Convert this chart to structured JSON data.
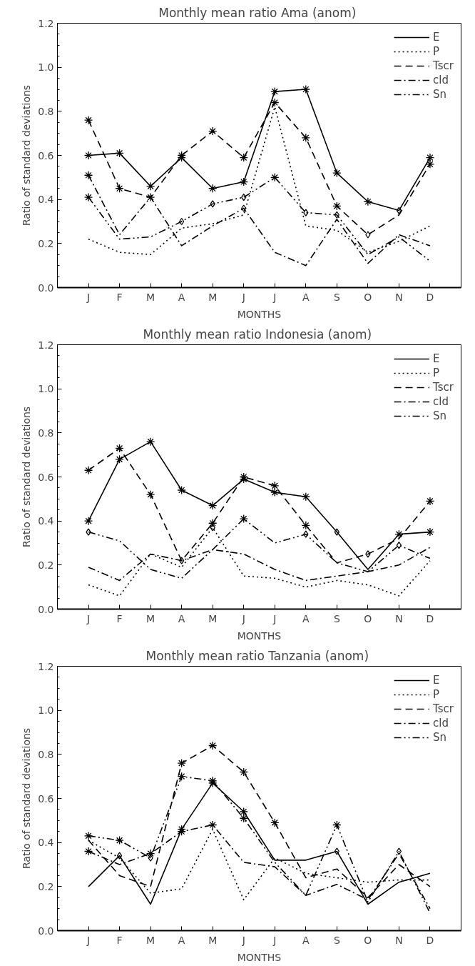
{
  "chart_data": [
    {
      "type": "line",
      "title": "Monthly mean ratio  Ama (anom)",
      "xlabel": "MONTHS",
      "ylabel": "Ratio of standard deviations",
      "categories": [
        "J",
        "F",
        "M",
        "A",
        "M",
        "J",
        "J",
        "A",
        "S",
        "O",
        "N",
        "D"
      ],
      "ylim": [
        0,
        1.2
      ],
      "yticks": [
        {
          "value": 0,
          "label": "0.0"
        },
        {
          "value": 0.2,
          "label": "0.2"
        },
        {
          "value": 0.4,
          "label": "0.4"
        },
        {
          "value": 0.6,
          "label": "0.6"
        },
        {
          "value": 0.8,
          "label": "0.8"
        },
        {
          "value": 1.0,
          "label": "1.0"
        },
        {
          "value": 1.2,
          "label": "1.2"
        }
      ],
      "grid": false,
      "legend": "top right",
      "series": [
        {
          "name": "E",
          "color": "#000000",
          "line_style": "solid",
          "values": [
            0.6,
            0.61,
            0.46,
            0.59,
            0.45,
            0.48,
            0.89,
            0.9,
            0.52,
            0.39,
            0.35,
            0.59
          ]
        },
        {
          "name": "P",
          "color": "#000000",
          "line_style": "dotted",
          "values": [
            0.22,
            0.16,
            0.15,
            0.27,
            0.29,
            0.33,
            0.82,
            0.28,
            0.26,
            0.16,
            0.21,
            0.28
          ]
        },
        {
          "name": "Tscr",
          "color": "#000000",
          "line_style": "dashed",
          "values": [
            0.76,
            0.45,
            0.41,
            0.6,
            0.71,
            0.59,
            0.84,
            0.68,
            0.37,
            0.24,
            0.33,
            0.56
          ]
        },
        {
          "name": "cld",
          "color": "#000000",
          "line_style": "dashdot",
          "values": [
            0.51,
            0.24,
            0.41,
            0.19,
            0.28,
            0.36,
            0.16,
            0.1,
            0.31,
            0.11,
            0.24,
            0.19
          ]
        },
        {
          "name": "Sn",
          "color": "#000000",
          "line_style": "dashdotdot",
          "values": [
            0.41,
            0.22,
            0.23,
            0.3,
            0.38,
            0.41,
            0.5,
            0.34,
            0.33,
            0.15,
            0.23,
            0.12
          ]
        },
        {
          "type": "scatter",
          "marker": "cross",
          "color": "#000000",
          "values": [
            0.6,
            0.61,
            0.46,
            0.59,
            0.45,
            0.48,
            0.89,
            0.9,
            0.52,
            0.39,
            null,
            0.59
          ]
        },
        {
          "type": "scatter",
          "marker": "diamond",
          "color": "#000000",
          "values": [
            null,
            null,
            null,
            null,
            null,
            null,
            null,
            null,
            null,
            null,
            0.35,
            null
          ]
        },
        {
          "type": "scatter",
          "marker": "cross",
          "color": "#000000",
          "values": [
            0.76,
            0.45,
            0.41,
            0.6,
            0.71,
            0.59,
            0.84,
            0.68,
            0.37,
            null,
            null,
            0.56
          ]
        },
        {
          "type": "scatter",
          "marker": "diamond",
          "color": "#000000",
          "values": [
            null,
            null,
            null,
            null,
            null,
            null,
            null,
            null,
            null,
            0.24,
            null,
            null
          ]
        },
        {
          "type": "scatter",
          "marker": "cross",
          "color": "#000000",
          "values": [
            0.51,
            null,
            null,
            null,
            null,
            null,
            null,
            null,
            null,
            null,
            null,
            null
          ]
        },
        {
          "type": "scatter",
          "marker": "diamond",
          "color": "#000000",
          "values": [
            null,
            null,
            null,
            null,
            null,
            0.36,
            null,
            null,
            null,
            null,
            null,
            null
          ]
        },
        {
          "type": "scatter",
          "marker": "cross",
          "color": "#000000",
          "values": [
            0.41,
            null,
            null,
            null,
            null,
            null,
            0.5,
            null,
            null,
            null,
            null,
            null
          ]
        },
        {
          "type": "scatter",
          "marker": "diamond",
          "color": "#000000",
          "values": [
            null,
            null,
            null,
            0.3,
            0.38,
            0.41,
            null,
            0.34,
            0.33,
            null,
            null,
            null
          ]
        }
      ]
    },
    {
      "type": "line",
      "title": "Monthly mean ratio  Indonesia (anom)",
      "xlabel": "MONTHS",
      "ylabel": "Ratio of standard deviations",
      "categories": [
        "J",
        "F",
        "M",
        "A",
        "M",
        "J",
        "J",
        "A",
        "S",
        "O",
        "N",
        "D"
      ],
      "ylim": [
        0,
        1.2
      ],
      "yticks": [
        {
          "value": 0,
          "label": "0.0"
        },
        {
          "value": 0.2,
          "label": "0.2"
        },
        {
          "value": 0.4,
          "label": "0.4"
        },
        {
          "value": 0.6,
          "label": "0.6"
        },
        {
          "value": 0.8,
          "label": "0.8"
        },
        {
          "value": 1.0,
          "label": "1.0"
        },
        {
          "value": 1.2,
          "label": "1.2"
        }
      ],
      "grid": false,
      "legend": "top right",
      "series": [
        {
          "name": "E",
          "color": "#000000",
          "line_style": "solid",
          "values": [
            0.4,
            0.68,
            0.76,
            0.54,
            0.47,
            0.59,
            0.53,
            0.51,
            0.35,
            0.18,
            0.34,
            0.35
          ]
        },
        {
          "name": "P",
          "color": "#000000",
          "line_style": "dotted",
          "values": [
            0.11,
            0.06,
            0.25,
            0.19,
            0.37,
            0.15,
            0.14,
            0.1,
            0.13,
            0.11,
            0.06,
            0.22
          ]
        },
        {
          "name": "Tscr",
          "color": "#000000",
          "line_style": "dashed",
          "values": [
            0.63,
            0.73,
            0.52,
            0.22,
            0.39,
            0.6,
            0.56,
            0.38,
            0.21,
            0.25,
            0.32,
            0.49
          ]
        },
        {
          "name": "cld",
          "color": "#000000",
          "line_style": "dashdot",
          "values": [
            0.19,
            0.13,
            0.25,
            0.22,
            0.27,
            0.25,
            0.18,
            0.13,
            0.15,
            0.17,
            0.2,
            0.28
          ]
        },
        {
          "name": "Sn",
          "color": "#000000",
          "line_style": "dashdotdot",
          "values": [
            0.35,
            0.31,
            0.18,
            0.14,
            0.27,
            0.41,
            0.3,
            0.34,
            0.21,
            0.17,
            0.29,
            0.23
          ]
        },
        {
          "type": "scatter",
          "marker": "cross",
          "color": "#000000",
          "values": [
            0.4,
            0.68,
            0.76,
            0.54,
            0.47,
            0.59,
            0.53,
            0.51,
            null,
            null,
            0.34,
            0.35
          ]
        },
        {
          "type": "scatter",
          "marker": "diamond",
          "color": "#000000",
          "values": [
            null,
            null,
            null,
            null,
            null,
            null,
            null,
            null,
            0.35,
            null,
            null,
            null
          ]
        },
        {
          "type": "scatter",
          "marker": "diamond",
          "color": "#000000",
          "values": [
            null,
            null,
            null,
            null,
            0.37,
            null,
            null,
            null,
            null,
            null,
            null,
            null
          ]
        },
        {
          "type": "scatter",
          "marker": "cross",
          "color": "#000000",
          "values": [
            0.63,
            0.73,
            0.52,
            null,
            0.39,
            0.6,
            0.56,
            0.38,
            null,
            null,
            null,
            0.49
          ]
        },
        {
          "type": "scatter",
          "marker": "diamond",
          "color": "#000000",
          "values": [
            null,
            null,
            null,
            0.22,
            null,
            null,
            null,
            null,
            null,
            0.25,
            null,
            null
          ]
        },
        {
          "type": "scatter",
          "marker": "cross",
          "color": "#000000",
          "values": [
            null,
            null,
            null,
            null,
            null,
            0.41,
            null,
            null,
            null,
            null,
            null,
            null
          ]
        },
        {
          "type": "scatter",
          "marker": "diamond",
          "color": "#000000",
          "values": [
            0.35,
            null,
            null,
            null,
            null,
            null,
            null,
            0.34,
            null,
            null,
            0.29,
            null
          ]
        }
      ]
    },
    {
      "type": "line",
      "title": "Monthly mean ratio  Tanzania (anom)",
      "xlabel": "MONTHS",
      "ylabel": "Ratio of standard deviations",
      "categories": [
        "J",
        "F",
        "M",
        "A",
        "M",
        "J",
        "J",
        "A",
        "S",
        "O",
        "N",
        "D"
      ],
      "ylim": [
        0,
        1.2
      ],
      "yticks": [
        {
          "value": 0,
          "label": "0.0"
        },
        {
          "value": 0.2,
          "label": "0.2"
        },
        {
          "value": 0.4,
          "label": "0.4"
        },
        {
          "value": 0.6,
          "label": "0.6"
        },
        {
          "value": 0.8,
          "label": "0.8"
        },
        {
          "value": 1.0,
          "label": "1.0"
        },
        {
          "value": 1.2,
          "label": "1.2"
        }
      ],
      "grid": false,
      "legend": "top right",
      "series": [
        {
          "name": "E",
          "color": "#000000",
          "line_style": "solid",
          "values": [
            0.2,
            0.34,
            0.12,
            0.46,
            0.67,
            0.54,
            0.32,
            0.32,
            0.36,
            0.12,
            0.22,
            0.26
          ]
        },
        {
          "name": "P",
          "color": "#000000",
          "line_style": "dotted",
          "values": [
            0.41,
            0.33,
            0.17,
            0.19,
            0.46,
            0.14,
            0.33,
            0.26,
            0.24,
            0.22,
            0.23,
            0.23
          ]
        },
        {
          "name": "Tscr",
          "color": "#000000",
          "line_style": "dashed",
          "values": [
            0.41,
            0.25,
            0.2,
            0.76,
            0.84,
            0.72,
            0.49,
            0.24,
            0.28,
            0.15,
            0.3,
            0.2
          ]
        },
        {
          "name": "cld",
          "color": "#000000",
          "line_style": "dashdot",
          "values": [
            0.36,
            0.3,
            0.35,
            0.45,
            0.48,
            0.31,
            0.29,
            0.16,
            0.21,
            0.14,
            0.35,
            0.1
          ]
        },
        {
          "name": "Sn",
          "color": "#000000",
          "line_style": "dashdotdot",
          "values": [
            0.43,
            0.41,
            0.33,
            0.7,
            0.68,
            0.51,
            0.31,
            0.16,
            0.48,
            0.13,
            0.36,
            0.08
          ]
        },
        {
          "type": "scatter",
          "marker": "cross",
          "color": "#000000",
          "values": [
            null,
            null,
            null,
            0.46,
            0.67,
            0.54,
            null,
            null,
            null,
            null,
            null,
            null
          ]
        },
        {
          "type": "scatter",
          "marker": "diamond",
          "color": "#000000",
          "values": [
            null,
            0.34,
            null,
            null,
            null,
            null,
            null,
            null,
            0.36,
            null,
            null,
            null
          ]
        },
        {
          "type": "scatter",
          "marker": "cross",
          "color": "#000000",
          "values": [
            null,
            null,
            null,
            0.76,
            0.84,
            0.72,
            0.49,
            null,
            null,
            null,
            null,
            null
          ]
        },
        {
          "type": "scatter",
          "marker": "cross",
          "color": "#000000",
          "values": [
            0.36,
            null,
            0.35,
            0.45,
            0.48,
            null,
            null,
            null,
            null,
            null,
            null,
            null
          ]
        },
        {
          "type": "scatter",
          "marker": "cross",
          "color": "#000000",
          "values": [
            0.43,
            0.41,
            null,
            0.7,
            0.68,
            0.51,
            null,
            null,
            0.48,
            null,
            null,
            null
          ]
        },
        {
          "type": "scatter",
          "marker": "diamond",
          "color": "#000000",
          "values": [
            null,
            null,
            0.33,
            null,
            null,
            null,
            null,
            null,
            null,
            null,
            0.36,
            null
          ]
        }
      ]
    }
  ]
}
